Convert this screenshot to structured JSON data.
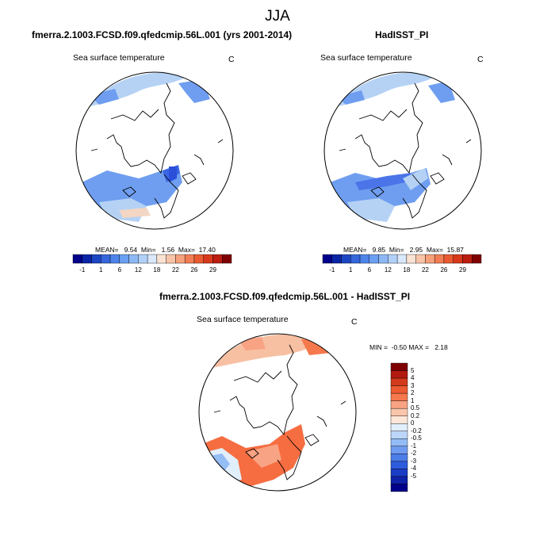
{
  "title": "JJA",
  "colors": {
    "ocean_blue_light": "#b5d2f5",
    "ocean_blue_mid": "#6f9ef0",
    "ocean_blue_dark": "#4a74e8",
    "diff_red": "#f56d41",
    "diff_red_light": "#f8b08f",
    "coast": "#000000"
  },
  "panels": {
    "left": {
      "title": "fmerra.2.1003.FCSD.f09.qfedcmip.56L.001 (yrs 2001-2014)",
      "variable": "Sea surface temperature",
      "units": "C",
      "stats_text": "MEAN=   9.54  Min=   1.56  Max=  17.40"
    },
    "right": {
      "title": "HadISST_PI",
      "variable": "Sea surface temperature",
      "units": "C",
      "stats_text": "MEAN=   9.85  Min=   2.95  Max=  15.87"
    },
    "diff": {
      "title": "fmerra.2.1003.FCSD.f09.qfedcmip.56L.001 - HadISST_PI",
      "variable": "Sea surface temperature",
      "units": "C",
      "stats_text": "MIN =  -0.50 MAX =   2.18"
    }
  },
  "colorbar_abs": {
    "colors": [
      "#00008b",
      "#0b24a6",
      "#1c45c4",
      "#3566db",
      "#4d84ea",
      "#6a9ff2",
      "#8cb8f6",
      "#b2d1f9",
      "#d9e8fb",
      "#fbe3d4",
      "#f9c3a8",
      "#f6a17c",
      "#f27d55",
      "#ea5a31",
      "#d8381b",
      "#bb1d0f",
      "#7f0000"
    ],
    "labels": [
      "-1",
      "1",
      "6",
      "12",
      "18",
      "22",
      "26",
      "29"
    ]
  },
  "colorbar_diff": {
    "colors": [
      "#7f0000",
      "#b21a10",
      "#d33a1c",
      "#ec5a32",
      "#f6794d",
      "#f8a383",
      "#fac6ab",
      "#fce6d8",
      "#e1eefb",
      "#bcd6f9",
      "#94bcf5",
      "#6f9cf0",
      "#4d7de9",
      "#2d5bdd",
      "#1a3dc6",
      "#0e22a8",
      "#00008b"
    ],
    "labels": [
      "5",
      "4",
      "3",
      "2",
      "1",
      "0.5",
      "0.2",
      "0",
      "-0.2",
      "-0.5",
      "-1",
      "-2",
      "-3",
      "-4",
      "-5"
    ]
  }
}
